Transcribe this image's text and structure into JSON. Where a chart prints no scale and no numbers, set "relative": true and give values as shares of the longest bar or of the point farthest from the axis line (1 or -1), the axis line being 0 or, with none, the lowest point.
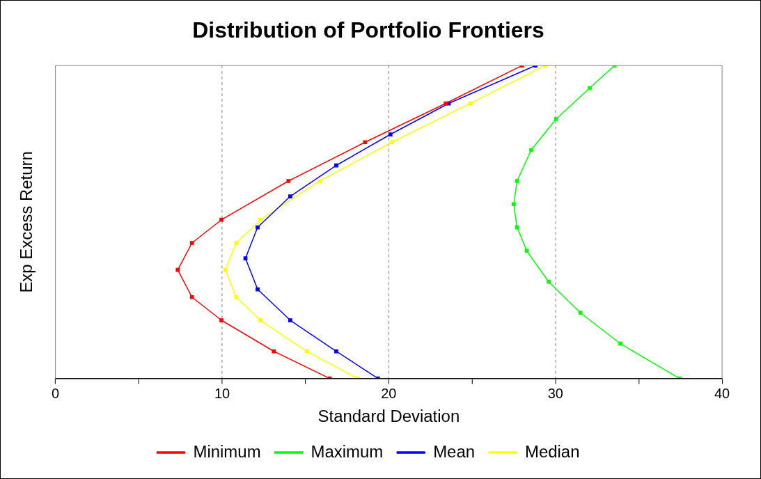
{
  "chart_data": {
    "type": "line",
    "title": "Distribution of Portfolio Frontiers",
    "xlabel": "Standard Deviation",
    "ylabel": "Exp Excess Return",
    "relative": true,
    "xlim": [
      0,
      40
    ],
    "xticks": [
      0,
      {
        "value": 5,
        "label": null
      },
      10,
      {
        "value": 15,
        "label": null
      },
      20,
      {
        "value": 25,
        "label": null
      },
      30,
      {
        "value": 35,
        "label": null
      },
      40
    ],
    "grid": "x",
    "legend": "bottom",
    "marker": "square",
    "line_style": "solid",
    "series": [
      {
        "name": "Minimum",
        "color": "#ff0000",
        "x": [
          16.46,
          13.1,
          9.96,
          8.19,
          7.34,
          8.19,
          9.96,
          13.98,
          18.58,
          23.42,
          28.0
        ],
        "values": [
          0,
          0.087,
          0.186,
          0.26,
          0.347,
          0.433,
          0.507,
          0.631,
          0.755,
          0.879,
          1
        ]
      },
      {
        "name": "Maximum",
        "color": "#00ff00",
        "x": [
          37.45,
          33.9,
          31.5,
          29.6,
          28.28,
          27.7,
          27.5,
          27.7,
          28.55,
          30.04,
          32.06,
          33.55
        ],
        "values": [
          0,
          0.111,
          0.21,
          0.309,
          0.408,
          0.483,
          0.557,
          0.631,
          0.73,
          0.829,
          0.928,
          1
        ]
      },
      {
        "name": "Mean",
        "color": "#0000ff",
        "x": [
          19.35,
          16.85,
          14.09,
          12.13,
          11.4,
          12.13,
          14.09,
          16.85,
          20.1,
          23.6,
          28.8
        ],
        "values": [
          0,
          0.087,
          0.186,
          0.285,
          0.384,
          0.483,
          0.582,
          0.681,
          0.78,
          0.879,
          1
        ]
      },
      {
        "name": "Median",
        "color": "#ffff00",
        "x": [
          18.14,
          15.08,
          12.3,
          10.85,
          10.2,
          10.85,
          12.3,
          15.87,
          20.2,
          24.9,
          29.4
        ],
        "values": [
          0,
          0.087,
          0.186,
          0.26,
          0.347,
          0.433,
          0.507,
          0.631,
          0.755,
          0.879,
          1
        ]
      }
    ]
  }
}
